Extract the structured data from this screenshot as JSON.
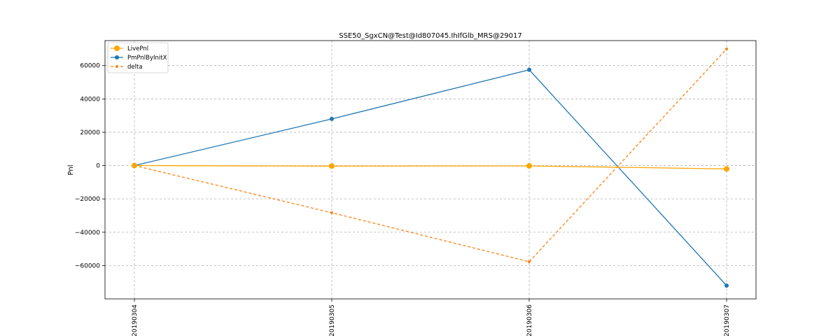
{
  "chart_data": {
    "type": "line",
    "title": "SSE50_SgxCN@Test@Id807045.IhIfGlb_MRS@29017",
    "xlabel": "",
    "ylabel": "Pnl",
    "categories": [
      "20190304",
      "20190305",
      "20190306",
      "20190307"
    ],
    "ylim": [
      -80000,
      75000
    ],
    "yticks": [
      -60000,
      -40000,
      -20000,
      0,
      20000,
      40000,
      60000
    ],
    "ytick_labels": [
      "−60000",
      "−40000",
      "−20000",
      "0",
      "20000",
      "40000",
      "60000"
    ],
    "grid": true,
    "legend_position": "top-left",
    "series": [
      {
        "name": "LivePnl",
        "values": [
          0,
          -300,
          -200,
          -2000
        ],
        "color": "#ffa500",
        "style": "solid",
        "marker": "circle-large"
      },
      {
        "name": "PmPnlByInitX",
        "values": [
          0,
          28000,
          57500,
          -72000
        ],
        "color": "#1f77b4",
        "style": "solid",
        "marker": "circle"
      },
      {
        "name": "delta",
        "values": [
          0,
          -28300,
          -57700,
          70000
        ],
        "color": "#ff7f0e",
        "style": "dashed",
        "marker": "circle-small"
      }
    ]
  }
}
